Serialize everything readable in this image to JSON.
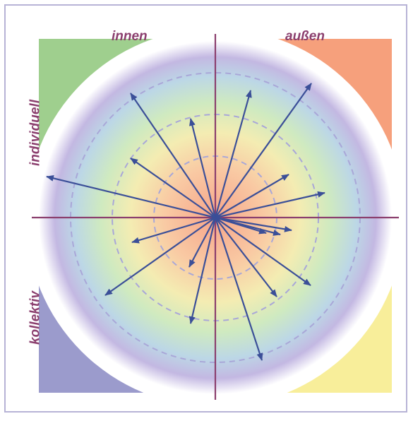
{
  "labels": {
    "top_left": "innen",
    "top_right": "außen",
    "left_top": "individuell",
    "left_bottom": "kollektiv"
  },
  "colors": {
    "frame": "#b7b3d6",
    "axis": "#8b3f6e",
    "arrow": "#3b4f98",
    "label": "#8b3f6e",
    "quadrant_top_left": "#9fcf8e",
    "quadrant_top_right": "#f6a07c",
    "quadrant_bottom_left": "#9b9bcc",
    "quadrant_bottom_right": "#f8ee9a",
    "dashed_circle": "#a9a7d8"
  },
  "rings": {
    "dashed_count": 3
  },
  "arrows_count": 18
}
